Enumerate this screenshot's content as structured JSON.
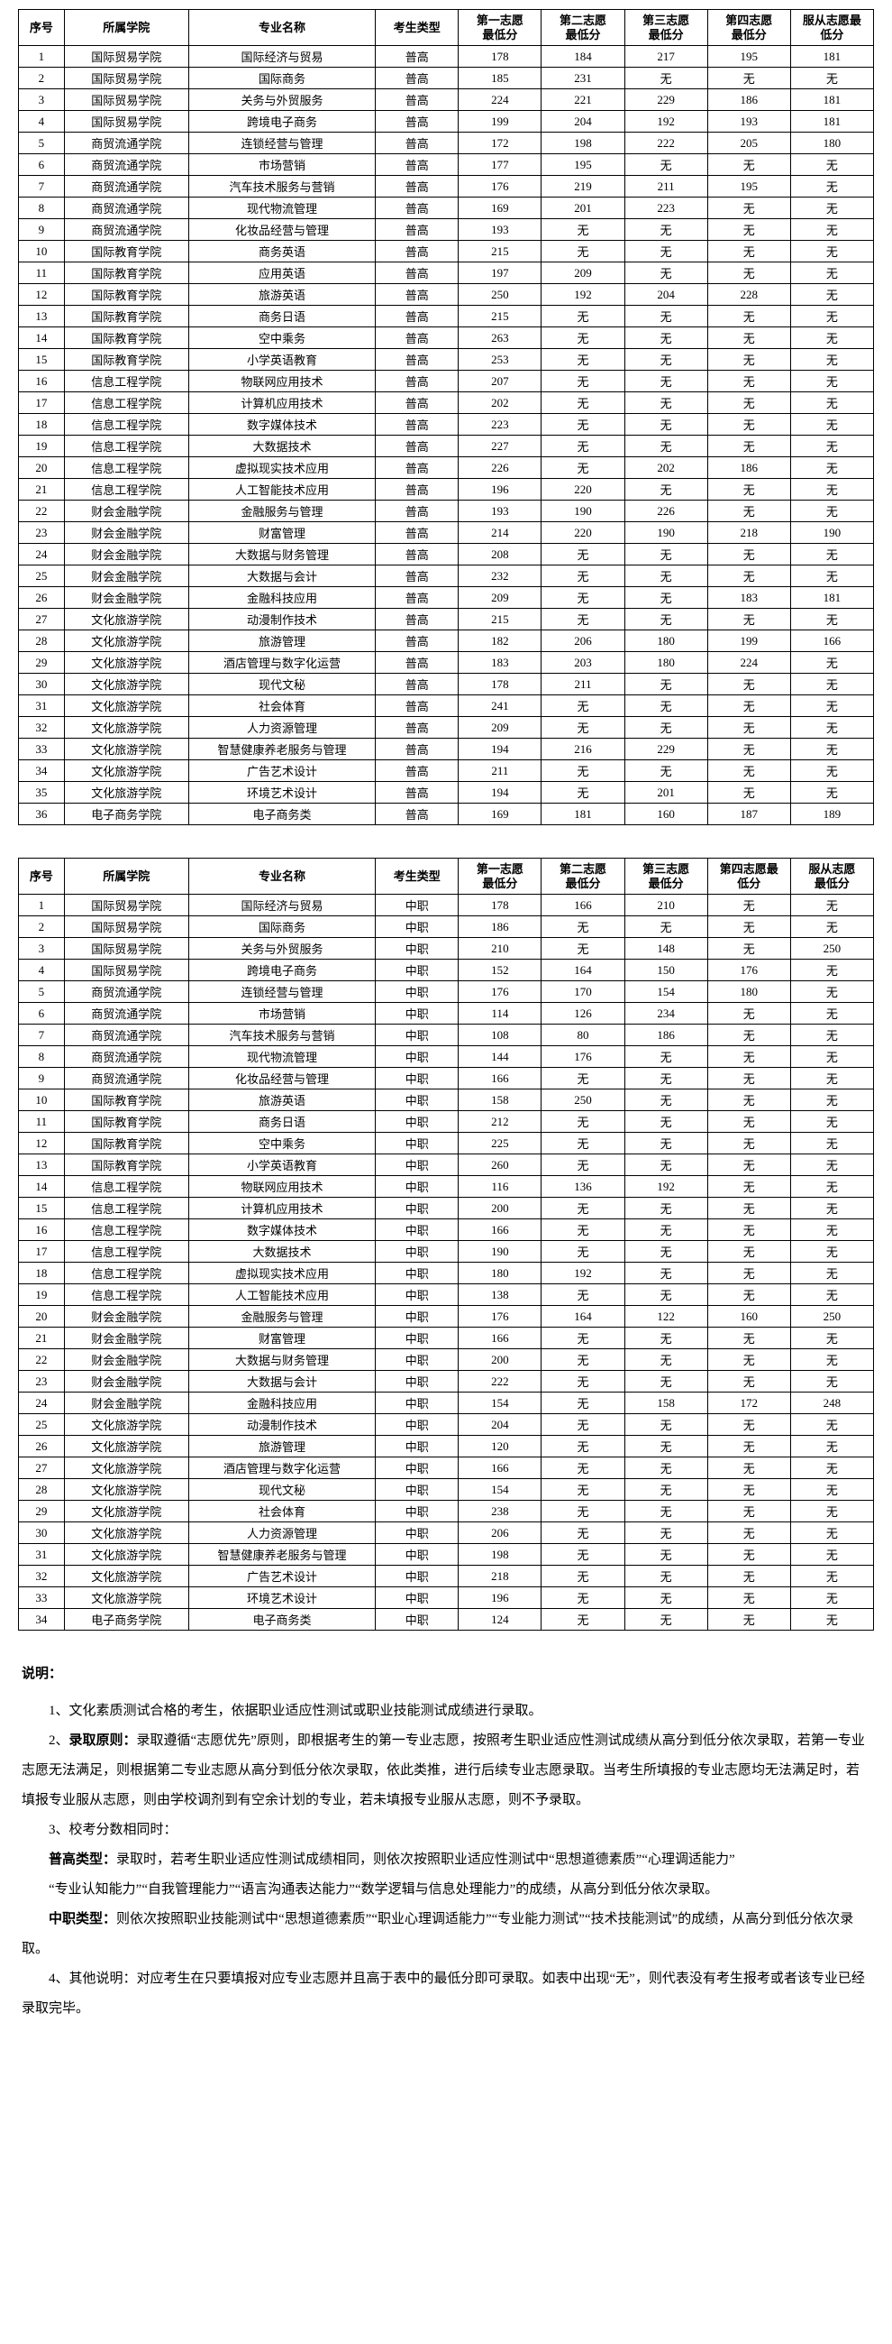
{
  "columns": [
    "序号",
    "所属学院",
    "专业名称",
    "考生类型",
    "第一志愿最低分",
    "第二志愿最低分",
    "第三志愿最低分",
    "第四志愿最低分",
    "服从志愿最低分"
  ],
  "split_headers": [
    {
      "l1": "第一志愿",
      "l2": "最低分"
    },
    {
      "l1": "第二志愿",
      "l2": "最低分"
    },
    {
      "l1": "第三志愿",
      "l2": "最低分"
    },
    {
      "l1": "第四志愿",
      "l2": "最低分"
    },
    {
      "l1": "服从志愿最",
      "l2": "低分"
    }
  ],
  "split_headers2": [
    {
      "l1": "第一志愿",
      "l2": "最低分"
    },
    {
      "l1": "第二志愿",
      "l2": "最低分"
    },
    {
      "l1": "第三志愿",
      "l2": "最低分"
    },
    {
      "l1": "第四志愿最",
      "l2": "低分"
    },
    {
      "l1": "服从志愿",
      "l2": "最低分"
    }
  ],
  "table1": [
    [
      "1",
      "国际贸易学院",
      "国际经济与贸易",
      "普高",
      "178",
      "184",
      "217",
      "195",
      "181"
    ],
    [
      "2",
      "国际贸易学院",
      "国际商务",
      "普高",
      "185",
      "231",
      "无",
      "无",
      "无"
    ],
    [
      "3",
      "国际贸易学院",
      "关务与外贸服务",
      "普高",
      "224",
      "221",
      "229",
      "186",
      "181"
    ],
    [
      "4",
      "国际贸易学院",
      "跨境电子商务",
      "普高",
      "199",
      "204",
      "192",
      "193",
      "181"
    ],
    [
      "5",
      "商贸流通学院",
      "连锁经营与管理",
      "普高",
      "172",
      "198",
      "222",
      "205",
      "180"
    ],
    [
      "6",
      "商贸流通学院",
      "市场营销",
      "普高",
      "177",
      "195",
      "无",
      "无",
      "无"
    ],
    [
      "7",
      "商贸流通学院",
      "汽车技术服务与营销",
      "普高",
      "176",
      "219",
      "211",
      "195",
      "无"
    ],
    [
      "8",
      "商贸流通学院",
      "现代物流管理",
      "普高",
      "169",
      "201",
      "223",
      "无",
      "无"
    ],
    [
      "9",
      "商贸流通学院",
      "化妆品经营与管理",
      "普高",
      "193",
      "无",
      "无",
      "无",
      "无"
    ],
    [
      "10",
      "国际教育学院",
      "商务英语",
      "普高",
      "215",
      "无",
      "无",
      "无",
      "无"
    ],
    [
      "11",
      "国际教育学院",
      "应用英语",
      "普高",
      "197",
      "209",
      "无",
      "无",
      "无"
    ],
    [
      "12",
      "国际教育学院",
      "旅游英语",
      "普高",
      "250",
      "192",
      "204",
      "228",
      "无"
    ],
    [
      "13",
      "国际教育学院",
      "商务日语",
      "普高",
      "215",
      "无",
      "无",
      "无",
      "无"
    ],
    [
      "14",
      "国际教育学院",
      "空中乘务",
      "普高",
      "263",
      "无",
      "无",
      "无",
      "无"
    ],
    [
      "15",
      "国际教育学院",
      "小学英语教育",
      "普高",
      "253",
      "无",
      "无",
      "无",
      "无"
    ],
    [
      "16",
      "信息工程学院",
      "物联网应用技术",
      "普高",
      "207",
      "无",
      "无",
      "无",
      "无"
    ],
    [
      "17",
      "信息工程学院",
      "计算机应用技术",
      "普高",
      "202",
      "无",
      "无",
      "无",
      "无"
    ],
    [
      "18",
      "信息工程学院",
      "数字媒体技术",
      "普高",
      "223",
      "无",
      "无",
      "无",
      "无"
    ],
    [
      "19",
      "信息工程学院",
      "大数据技术",
      "普高",
      "227",
      "无",
      "无",
      "无",
      "无"
    ],
    [
      "20",
      "信息工程学院",
      "虚拟现实技术应用",
      "普高",
      "226",
      "无",
      "202",
      "186",
      "无"
    ],
    [
      "21",
      "信息工程学院",
      "人工智能技术应用",
      "普高",
      "196",
      "220",
      "无",
      "无",
      "无"
    ],
    [
      "22",
      "财会金融学院",
      "金融服务与管理",
      "普高",
      "193",
      "190",
      "226",
      "无",
      "无"
    ],
    [
      "23",
      "财会金融学院",
      "财富管理",
      "普高",
      "214",
      "220",
      "190",
      "218",
      "190"
    ],
    [
      "24",
      "财会金融学院",
      "大数据与财务管理",
      "普高",
      "208",
      "无",
      "无",
      "无",
      "无"
    ],
    [
      "25",
      "财会金融学院",
      "大数据与会计",
      "普高",
      "232",
      "无",
      "无",
      "无",
      "无"
    ],
    [
      "26",
      "财会金融学院",
      "金融科技应用",
      "普高",
      "209",
      "无",
      "无",
      "183",
      "181"
    ],
    [
      "27",
      "文化旅游学院",
      "动漫制作技术",
      "普高",
      "215",
      "无",
      "无",
      "无",
      "无"
    ],
    [
      "28",
      "文化旅游学院",
      "旅游管理",
      "普高",
      "182",
      "206",
      "180",
      "199",
      "166"
    ],
    [
      "29",
      "文化旅游学院",
      "酒店管理与数字化运营",
      "普高",
      "183",
      "203",
      "180",
      "224",
      "无"
    ],
    [
      "30",
      "文化旅游学院",
      "现代文秘",
      "普高",
      "178",
      "211",
      "无",
      "无",
      "无"
    ],
    [
      "31",
      "文化旅游学院",
      "社会体育",
      "普高",
      "241",
      "无",
      "无",
      "无",
      "无"
    ],
    [
      "32",
      "文化旅游学院",
      "人力资源管理",
      "普高",
      "209",
      "无",
      "无",
      "无",
      "无"
    ],
    [
      "33",
      "文化旅游学院",
      "智慧健康养老服务与管理",
      "普高",
      "194",
      "216",
      "229",
      "无",
      "无"
    ],
    [
      "34",
      "文化旅游学院",
      "广告艺术设计",
      "普高",
      "211",
      "无",
      "无",
      "无",
      "无"
    ],
    [
      "35",
      "文化旅游学院",
      "环境艺术设计",
      "普高",
      "194",
      "无",
      "201",
      "无",
      "无"
    ],
    [
      "36",
      "电子商务学院",
      "电子商务类",
      "普高",
      "169",
      "181",
      "160",
      "187",
      "189"
    ]
  ],
  "table2": [
    [
      "1",
      "国际贸易学院",
      "国际经济与贸易",
      "中职",
      "178",
      "166",
      "210",
      "无",
      "无"
    ],
    [
      "2",
      "国际贸易学院",
      "国际商务",
      "中职",
      "186",
      "无",
      "无",
      "无",
      "无"
    ],
    [
      "3",
      "国际贸易学院",
      "关务与外贸服务",
      "中职",
      "210",
      "无",
      "148",
      "无",
      "250"
    ],
    [
      "4",
      "国际贸易学院",
      "跨境电子商务",
      "中职",
      "152",
      "164",
      "150",
      "176",
      "无"
    ],
    [
      "5",
      "商贸流通学院",
      "连锁经营与管理",
      "中职",
      "176",
      "170",
      "154",
      "180",
      "无"
    ],
    [
      "6",
      "商贸流通学院",
      "市场营销",
      "中职",
      "114",
      "126",
      "234",
      "无",
      "无"
    ],
    [
      "7",
      "商贸流通学院",
      "汽车技术服务与营销",
      "中职",
      "108",
      "80",
      "186",
      "无",
      "无"
    ],
    [
      "8",
      "商贸流通学院",
      "现代物流管理",
      "中职",
      "144",
      "176",
      "无",
      "无",
      "无"
    ],
    [
      "9",
      "商贸流通学院",
      "化妆品经营与管理",
      "中职",
      "166",
      "无",
      "无",
      "无",
      "无"
    ],
    [
      "10",
      "国际教育学院",
      "旅游英语",
      "中职",
      "158",
      "250",
      "无",
      "无",
      "无"
    ],
    [
      "11",
      "国际教育学院",
      "商务日语",
      "中职",
      "212",
      "无",
      "无",
      "无",
      "无"
    ],
    [
      "12",
      "国际教育学院",
      "空中乘务",
      "中职",
      "225",
      "无",
      "无",
      "无",
      "无"
    ],
    [
      "13",
      "国际教育学院",
      "小学英语教育",
      "中职",
      "260",
      "无",
      "无",
      "无",
      "无"
    ],
    [
      "14",
      "信息工程学院",
      "物联网应用技术",
      "中职",
      "116",
      "136",
      "192",
      "无",
      "无"
    ],
    [
      "15",
      "信息工程学院",
      "计算机应用技术",
      "中职",
      "200",
      "无",
      "无",
      "无",
      "无"
    ],
    [
      "16",
      "信息工程学院",
      "数字媒体技术",
      "中职",
      "166",
      "无",
      "无",
      "无",
      "无"
    ],
    [
      "17",
      "信息工程学院",
      "大数据技术",
      "中职",
      "190",
      "无",
      "无",
      "无",
      "无"
    ],
    [
      "18",
      "信息工程学院",
      "虚拟现实技术应用",
      "中职",
      "180",
      "192",
      "无",
      "无",
      "无"
    ],
    [
      "19",
      "信息工程学院",
      "人工智能技术应用",
      "中职",
      "138",
      "无",
      "无",
      "无",
      "无"
    ],
    [
      "20",
      "财会金融学院",
      "金融服务与管理",
      "中职",
      "176",
      "164",
      "122",
      "160",
      "250"
    ],
    [
      "21",
      "财会金融学院",
      "财富管理",
      "中职",
      "166",
      "无",
      "无",
      "无",
      "无"
    ],
    [
      "22",
      "财会金融学院",
      "大数据与财务管理",
      "中职",
      "200",
      "无",
      "无",
      "无",
      "无"
    ],
    [
      "23",
      "财会金融学院",
      "大数据与会计",
      "中职",
      "222",
      "无",
      "无",
      "无",
      "无"
    ],
    [
      "24",
      "财会金融学院",
      "金融科技应用",
      "中职",
      "154",
      "无",
      "158",
      "172",
      "248"
    ],
    [
      "25",
      "文化旅游学院",
      "动漫制作技术",
      "中职",
      "204",
      "无",
      "无",
      "无",
      "无"
    ],
    [
      "26",
      "文化旅游学院",
      "旅游管理",
      "中职",
      "120",
      "无",
      "无",
      "无",
      "无"
    ],
    [
      "27",
      "文化旅游学院",
      "酒店管理与数字化运营",
      "中职",
      "166",
      "无",
      "无",
      "无",
      "无"
    ],
    [
      "28",
      "文化旅游学院",
      "现代文秘",
      "中职",
      "154",
      "无",
      "无",
      "无",
      "无"
    ],
    [
      "29",
      "文化旅游学院",
      "社会体育",
      "中职",
      "238",
      "无",
      "无",
      "无",
      "无"
    ],
    [
      "30",
      "文化旅游学院",
      "人力资源管理",
      "中职",
      "206",
      "无",
      "无",
      "无",
      "无"
    ],
    [
      "31",
      "文化旅游学院",
      "智慧健康养老服务与管理",
      "中职",
      "198",
      "无",
      "无",
      "无",
      "无"
    ],
    [
      "32",
      "文化旅游学院",
      "广告艺术设计",
      "中职",
      "218",
      "无",
      "无",
      "无",
      "无"
    ],
    [
      "33",
      "文化旅游学院",
      "环境艺术设计",
      "中职",
      "196",
      "无",
      "无",
      "无",
      "无"
    ],
    [
      "34",
      "电子商务学院",
      "电子商务类",
      "中职",
      "124",
      "无",
      "无",
      "无",
      "无"
    ]
  ],
  "notes": {
    "title": "说明：",
    "p1": "1、文化素质测试合格的考生，依据职业适应性测试或职业技能测试成绩进行录取。",
    "p2_a": "2、",
    "p2_b": "录取原则：",
    "p2_c": "录取遵循“志愿优先”原则，即根据考生的第一专业志愿，按照考生职业适应性测试成绩从高分到低分依次录取，若第一专业志愿无法满足，则根据第二专业志愿从高分到低分依次录取，依此类推，进行后续专业志愿录取。当考生所填报的专业志愿均无法满足时，若填报专业服从志愿，则由学校调剂到有空余计划的专业，若未填报专业服从志愿，则不予录取。",
    "p3": "3、校考分数相同时：",
    "p4_a": "普高类型：",
    "p4_b": "录取时，若考生职业适应性测试成绩相同，则依次按照职业适应性测试中“思想道德素质”“心理调适能力”",
    "p5": "“专业认知能力”“自我管理能力”“语言沟通表达能力”“数学逻辑与信息处理能力”的成绩，从高分到低分依次录取。",
    "p6_a": "中职类型：",
    "p6_b": "则依次按照职业技能测试中“思想道德素质”“职业心理调适能力”“专业能力测试”“技术技能测试”的成绩，从高分到低分依次录取。",
    "p7": "4、其他说明：对应考生在只要填报对应专业志愿并且高于表中的最低分即可录取。如表中出现“无”，则代表没有考生报考或者该专业已经录取完毕。"
  }
}
